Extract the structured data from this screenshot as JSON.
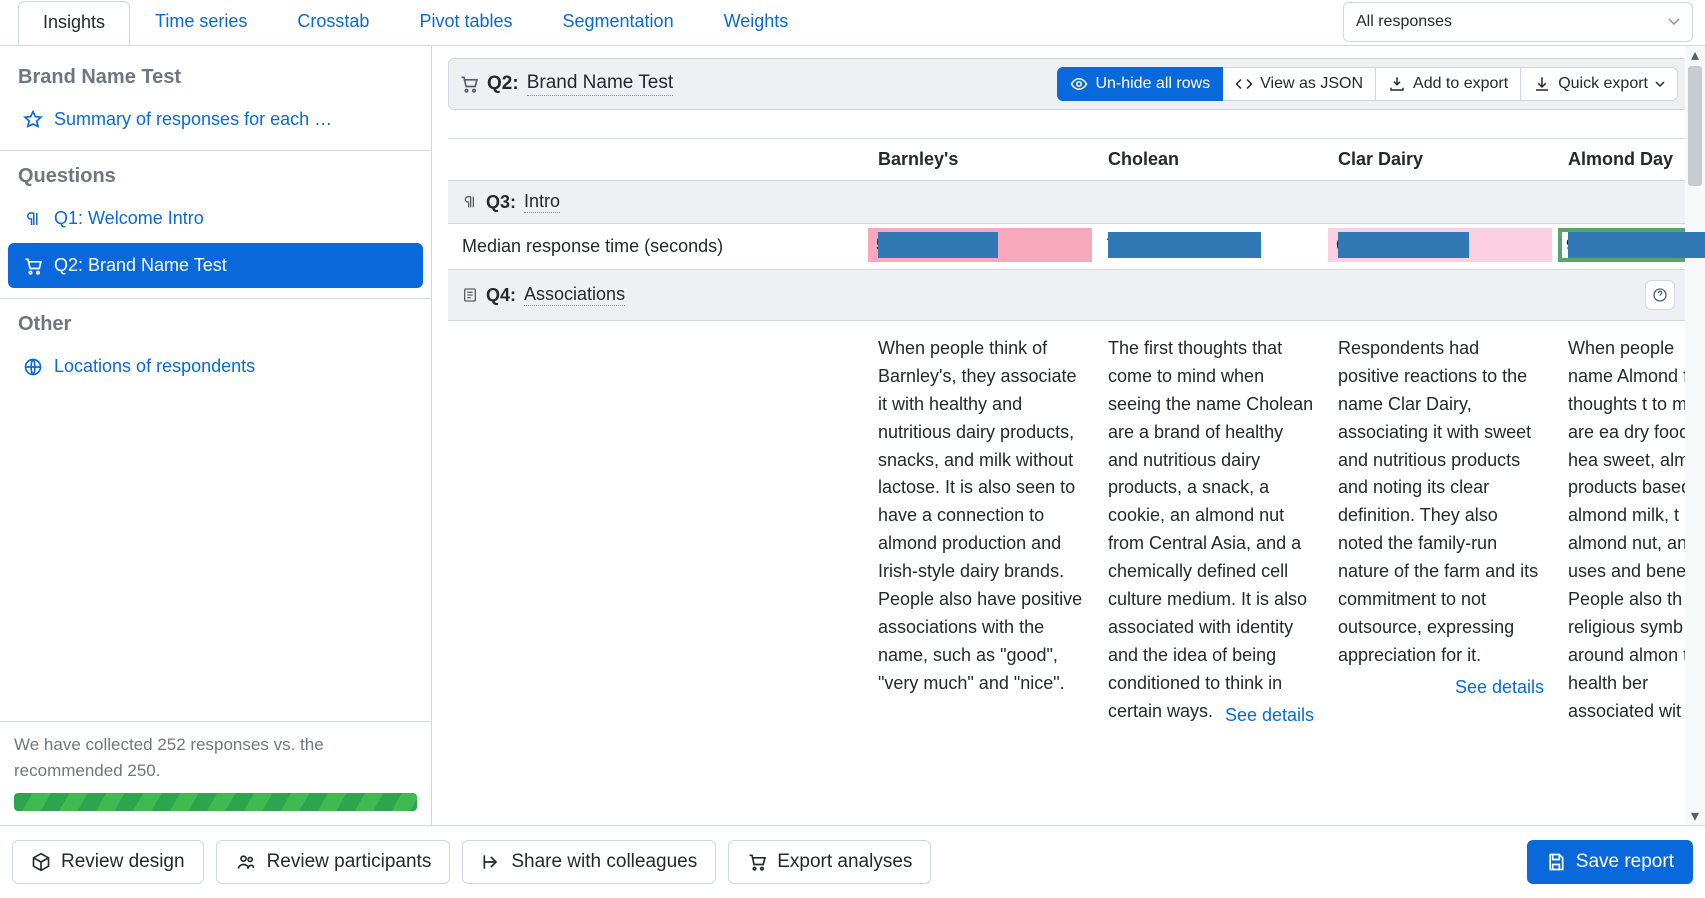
{
  "colors": {
    "link": "#0969da",
    "muted": "#6e7781",
    "border": "#d0d7de",
    "section_bg": "#eef0f3",
    "bar_fill": "#3079b5",
    "bg_pink": "#f7a8bd",
    "bg_lightpink": "#fbcfe0",
    "bg_white": "#ffffff",
    "bg_green_border": "#5aa36a",
    "progress": "#2da44e"
  },
  "tabs": [
    "Insights",
    "Time series",
    "Crosstab",
    "Pivot tables",
    "Segmentation",
    "Weights"
  ],
  "active_tab": "Insights",
  "filter_label": "All responses",
  "sidebar": {
    "title1": "Brand Name Test",
    "items1": [
      {
        "icon": "star",
        "label": "Summary of responses for each …"
      }
    ],
    "title2": "Questions",
    "items2": [
      {
        "icon": "para",
        "label": "Q1: Welcome Intro",
        "active": false
      },
      {
        "icon": "cart",
        "label": "Q2: Brand Name Test",
        "active": true
      }
    ],
    "title3": "Other",
    "items3": [
      {
        "icon": "globe",
        "label": "Locations of respondents"
      }
    ],
    "progress_text": "We have collected 252 responses vs. the recommended 250."
  },
  "qheader": {
    "icon": "cart",
    "id": "Q2:",
    "name": "Brand Name Test",
    "actions": {
      "unhide": "Un-hide all rows",
      "json": "View as JSON",
      "addexport": "Add to export",
      "quickexport": "Quick export"
    }
  },
  "columns": [
    "Barnley's",
    "Cholean",
    "Clar Dairy",
    "Almond Day"
  ],
  "q3": {
    "id": "Q3:",
    "name": "Intro"
  },
  "metric_row": {
    "label": "Median response time (seconds)",
    "max": 10.0,
    "cells": [
      {
        "value": "5.5",
        "num": 5.5,
        "bg": "#f7a8bd"
      },
      {
        "value": "7.0",
        "num": 7.0,
        "bg": "#ffffff"
      },
      {
        "value": "6.0",
        "num": 6.0,
        "bg": "#fbcfe0"
      },
      {
        "value": "9.0",
        "num": 9.0,
        "bg": "#ffffff",
        "border": "#5aa36a"
      }
    ]
  },
  "q4": {
    "id": "Q4:",
    "name": "Associations"
  },
  "assoc": [
    {
      "text": "When people think of Barnley's, they associate it with healthy and nutritious dairy products, snacks, and milk without lactose. It is also seen to have a connection to almond production and Irish-style dairy brands. People also have positive associations with the name, such as \"good\", \"very much\" and \"nice\".",
      "see": false
    },
    {
      "text": "The first thoughts that come to mind when seeing the name Cholean are a brand of healthy and nutritious dairy products, a snack, a cookie, an almond nut from Central Asia, and a chemically defined cell culture medium. It is also associated with identity and the idea of being conditioned to think in certain ways.",
      "see": true
    },
    {
      "text": "Respondents had positive reactions to the name Clar Dairy, associating it with sweet and nutritious products and noting its clear definition. They also noted the family-run nature of the farm and its commitment to not outsource, expressing appreciation for it.",
      "see": true
    },
    {
      "text": "When people name Almond first thoughts t to mind are ea dry foods, hea sweet, almond products based almond milk, t almond nut, an uses and bene People also th religious symb around almon the health ber associated wit",
      "see": false
    }
  ],
  "see_details": "See details",
  "footer": {
    "review_design": "Review design",
    "review_participants": "Review participants",
    "share": "Share with colleagues",
    "export": "Export analyses",
    "save": "Save report"
  }
}
